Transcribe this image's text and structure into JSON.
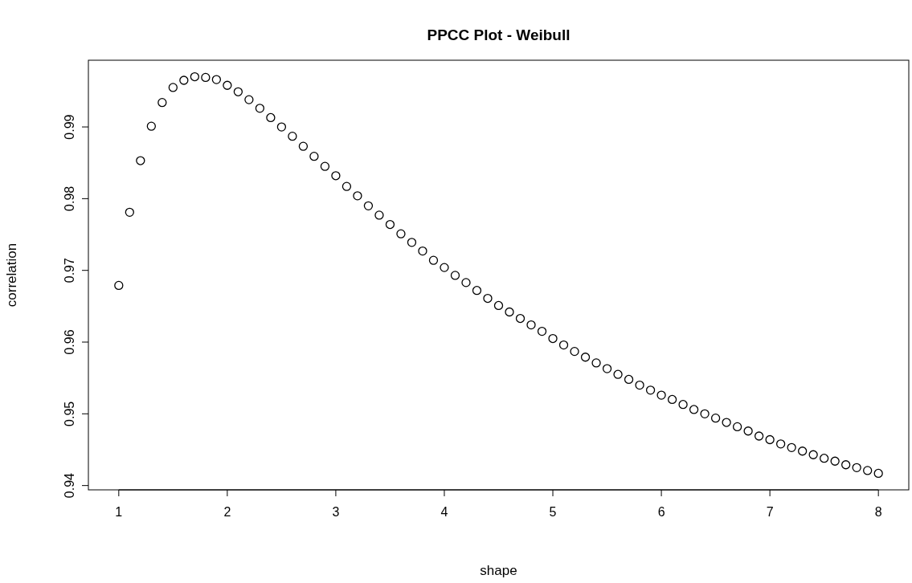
{
  "chart_data": {
    "type": "scatter",
    "title": "PPCC Plot - Weibull",
    "xlabel": "shape",
    "ylabel": "correlation",
    "x": [
      1.0,
      1.1,
      1.2,
      1.3,
      1.4,
      1.5,
      1.6,
      1.7,
      1.8,
      1.9,
      2.0,
      2.1,
      2.2,
      2.3,
      2.4,
      2.5,
      2.6,
      2.7,
      2.8,
      2.9,
      3.0,
      3.1,
      3.2,
      3.3,
      3.4,
      3.5,
      3.6,
      3.7,
      3.8,
      3.9,
      4.0,
      4.1,
      4.2,
      4.3,
      4.4,
      4.5,
      4.6,
      4.7,
      4.8,
      4.9,
      5.0,
      5.1,
      5.2,
      5.3,
      5.4,
      5.5,
      5.6,
      5.7,
      5.8,
      5.9,
      6.0,
      6.1,
      6.2,
      6.3,
      6.4,
      6.5,
      6.6,
      6.7,
      6.8,
      6.9,
      7.0,
      7.1,
      7.2,
      7.3,
      7.4,
      7.5,
      7.6,
      7.7,
      7.8,
      7.9,
      8.0
    ],
    "series": [
      {
        "color": "#000000",
        "values": [
          0.9679,
          0.9781,
          0.9853,
          0.9901,
          0.9934,
          0.9955,
          0.9965,
          0.997,
          0.9969,
          0.9966,
          0.9958,
          0.9949,
          0.9938,
          0.9926,
          0.9913,
          0.99,
          0.9887,
          0.9873,
          0.9859,
          0.9845,
          0.9832,
          0.9817,
          0.9804,
          0.979,
          0.9777,
          0.9764,
          0.9751,
          0.9739,
          0.9727,
          0.9714,
          0.9704,
          0.9693,
          0.9683,
          0.9672,
          0.9661,
          0.9651,
          0.9642,
          0.9633,
          0.9624,
          0.9615,
          0.9605,
          0.9596,
          0.9587,
          0.9579,
          0.9571,
          0.9563,
          0.9555,
          0.9548,
          0.954,
          0.9533,
          0.9526,
          0.952,
          0.9513,
          0.9506,
          0.95,
          0.9494,
          0.9488,
          0.9482,
          0.9476,
          0.9469,
          0.9464,
          0.9458,
          0.9453,
          0.9448,
          0.9443,
          0.9438,
          0.9434,
          0.9429,
          0.9425,
          0.9421,
          0.9417
        ]
      }
    ],
    "xlim": [
      0.72,
      8.28
    ],
    "xticks": [
      1,
      2,
      3,
      4,
      5,
      6,
      7,
      8
    ],
    "ylim": [
      0.9394,
      0.9993
    ],
    "yticks": [
      0.94,
      0.95,
      0.96,
      0.97,
      0.98,
      0.99
    ],
    "marker": "circle",
    "grid": false
  }
}
